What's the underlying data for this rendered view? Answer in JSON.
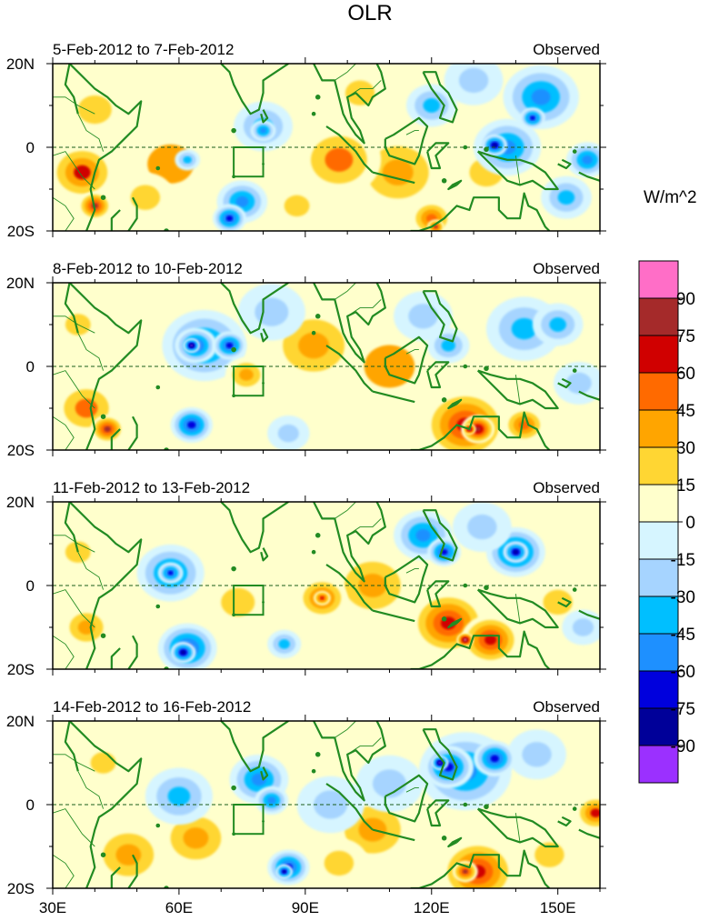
{
  "title": "OLR",
  "colorbar": {
    "units": "W/m^2",
    "levels": [
      "90",
      "75",
      "60",
      "45",
      "30",
      "15",
      "0",
      "-15",
      "-30",
      "-45",
      "-60",
      "-75",
      "-90"
    ],
    "colors": [
      "#ff6ec7",
      "#a52a2a",
      "#d00000",
      "#ff6a00",
      "#ffa500",
      "#ffd633",
      "#ffffcc",
      "#d6f5ff",
      "#a6d4ff",
      "#00bfff",
      "#1e90ff",
      "#0000dd",
      "#000099",
      "#9b30ff"
    ]
  },
  "axes": {
    "lat_labels": [
      "20N",
      "0",
      "20S"
    ],
    "lon_labels": [
      "30E",
      "60E",
      "90E",
      "120E",
      "150E"
    ]
  },
  "land_color": "#228b22",
  "panels": [
    {
      "period": "5-Feb-2012 to 7-Feb-2012",
      "type_label": "Observed",
      "blobs": [
        {
          "lon": 37,
          "lat": -6,
          "r": 8,
          "v": 60
        },
        {
          "lon": 40,
          "lat": -14,
          "r": 4,
          "v": 75
        },
        {
          "lon": 40,
          "lat": 9,
          "r": 8,
          "v": 20
        },
        {
          "lon": 52,
          "lat": -12,
          "r": 7,
          "v": 22
        },
        {
          "lon": 58,
          "lat": -4,
          "r": 11,
          "v": 30
        },
        {
          "lon": 75,
          "lat": -13,
          "r": 6,
          "v": -55
        },
        {
          "lon": 72,
          "lat": -17,
          "r": 4,
          "v": -65
        },
        {
          "lon": 62,
          "lat": -3,
          "r": 3,
          "v": -45
        },
        {
          "lon": 80,
          "lat": 5,
          "r": 7,
          "v": -45
        },
        {
          "lon": 80,
          "lat": 4,
          "r": 3,
          "v": -60
        },
        {
          "lon": 98,
          "lat": -3,
          "r": 10,
          "v": 45
        },
        {
          "lon": 112,
          "lat": -6,
          "r": 11,
          "v": 40
        },
        {
          "lon": 103,
          "lat": 13,
          "r": 7,
          "v": 18
        },
        {
          "lon": 88,
          "lat": -14,
          "r": 6,
          "v": 18
        },
        {
          "lon": 120,
          "lat": -17,
          "r": 5,
          "v": 50
        },
        {
          "lon": 121,
          "lat": -19,
          "r": 2,
          "v": 75
        },
        {
          "lon": 133,
          "lat": -6,
          "r": 8,
          "v": 20
        },
        {
          "lon": 120,
          "lat": 10,
          "r": 6,
          "v": -45
        },
        {
          "lon": 138,
          "lat": 0,
          "r": 8,
          "v": -60
        },
        {
          "lon": 135,
          "lat": 0.5,
          "r": 3,
          "v": -80
        },
        {
          "lon": 146,
          "lat": 12,
          "r": 9,
          "v": -55
        },
        {
          "lon": 144,
          "lat": 7,
          "r": 3,
          "v": -70
        },
        {
          "lon": 152,
          "lat": -12,
          "r": 6,
          "v": -40
        },
        {
          "lon": 157,
          "lat": -3,
          "r": 5,
          "v": -50
        },
        {
          "lon": 130,
          "lat": 16,
          "r": 7,
          "v": -25
        }
      ]
    },
    {
      "period": "8-Feb-2012 to 10-Feb-2012",
      "type_label": "Observed",
      "blobs": [
        {
          "lon": 38,
          "lat": -10,
          "r": 8,
          "v": 45
        },
        {
          "lon": 43,
          "lat": -15,
          "r": 4,
          "v": 75
        },
        {
          "lon": 36,
          "lat": 10,
          "r": 6,
          "v": 20
        },
        {
          "lon": 66,
          "lat": 5,
          "r": 10,
          "v": -55
        },
        {
          "lon": 64,
          "lat": 5,
          "r": 5,
          "v": -75
        },
        {
          "lon": 63,
          "lat": 5,
          "r": 2,
          "v": -92
        },
        {
          "lon": 72,
          "lat": 5,
          "r": 4,
          "v": -70
        },
        {
          "lon": 82,
          "lat": 13,
          "r": 8,
          "v": -25
        },
        {
          "lon": 63,
          "lat": -14,
          "r": 5,
          "v": -70
        },
        {
          "lon": 76,
          "lat": -2,
          "r": 5,
          "v": 40
        },
        {
          "lon": 92,
          "lat": 5,
          "r": 11,
          "v": 40
        },
        {
          "lon": 110,
          "lat": 0,
          "r": 12,
          "v": 30
        },
        {
          "lon": 128,
          "lat": -14,
          "r": 10,
          "v": 70
        },
        {
          "lon": 131,
          "lat": -15,
          "r": 4,
          "v": 80
        },
        {
          "lon": 129,
          "lat": -15,
          "r": 1.5,
          "v": 92
        },
        {
          "lon": 142,
          "lat": -14,
          "r": 5,
          "v": 55
        },
        {
          "lon": 118,
          "lat": 12,
          "r": 7,
          "v": -30
        },
        {
          "lon": 124,
          "lat": 5,
          "r": 5,
          "v": -40
        },
        {
          "lon": 142,
          "lat": 9,
          "r": 9,
          "v": -45
        },
        {
          "lon": 150,
          "lat": 10,
          "r": 6,
          "v": -35
        },
        {
          "lon": 155,
          "lat": -4,
          "r": 6,
          "v": -25
        },
        {
          "lon": 86,
          "lat": -16,
          "r": 5,
          "v": -20
        }
      ]
    },
    {
      "period": "11-Feb-2012 to 13-Feb-2012",
      "type_label": "Observed",
      "blobs": [
        {
          "lon": 58,
          "lat": 3,
          "r": 8,
          "v": -55
        },
        {
          "lon": 58,
          "lat": 3,
          "r": 3,
          "v": -75
        },
        {
          "lon": 62,
          "lat": -15,
          "r": 7,
          "v": -65
        },
        {
          "lon": 61,
          "lat": -16,
          "r": 3,
          "v": -80
        },
        {
          "lon": 38,
          "lat": -10,
          "r": 6,
          "v": 40
        },
        {
          "lon": 36,
          "lat": 8,
          "r": 6,
          "v": 20
        },
        {
          "lon": 74,
          "lat": -4,
          "r": 8,
          "v": 20
        },
        {
          "lon": 94,
          "lat": -3,
          "r": 6,
          "v": 55
        },
        {
          "lon": 94,
          "lat": -3,
          "r": 2,
          "v": 65
        },
        {
          "lon": 106,
          "lat": 0,
          "r": 10,
          "v": 35
        },
        {
          "lon": 85,
          "lat": -14,
          "r": 4,
          "v": -45
        },
        {
          "lon": 124,
          "lat": -9,
          "r": 9,
          "v": 65
        },
        {
          "lon": 134,
          "lat": -13,
          "r": 7,
          "v": 72
        },
        {
          "lon": 128,
          "lat": -13,
          "r": 2,
          "v": 92
        },
        {
          "lon": 118,
          "lat": 12,
          "r": 7,
          "v": -50
        },
        {
          "lon": 123,
          "lat": 8,
          "r": 4,
          "v": -70
        },
        {
          "lon": 140,
          "lat": 8,
          "r": 7,
          "v": -65
        },
        {
          "lon": 140,
          "lat": 8,
          "r": 3,
          "v": -80
        },
        {
          "lon": 132,
          "lat": 14,
          "r": 7,
          "v": -30
        },
        {
          "lon": 150,
          "lat": -4,
          "r": 7,
          "v": 20
        },
        {
          "lon": 156,
          "lat": -10,
          "r": 5,
          "v": -25
        }
      ]
    },
    {
      "period": "14-Feb-2012 to 16-Feb-2012",
      "type_label": "Observed",
      "blobs": [
        {
          "lon": 42,
          "lat": 10,
          "r": 6,
          "v": 25
        },
        {
          "lon": 48,
          "lat": -12,
          "r": 9,
          "v": 38
        },
        {
          "lon": 64,
          "lat": -8,
          "r": 9,
          "v": 40
        },
        {
          "lon": 60,
          "lat": 2,
          "r": 8,
          "v": -35
        },
        {
          "lon": 79,
          "lat": 6,
          "r": 7,
          "v": -50
        },
        {
          "lon": 82,
          "lat": 1,
          "r": 4,
          "v": -55
        },
        {
          "lon": 86,
          "lat": -15,
          "r": 5,
          "v": -65
        },
        {
          "lon": 85,
          "lat": -16,
          "r": 2,
          "v": -80
        },
        {
          "lon": 96,
          "lat": 0,
          "r": 8,
          "v": -25
        },
        {
          "lon": 110,
          "lat": 5,
          "r": 8,
          "v": -20
        },
        {
          "lon": 106,
          "lat": -6,
          "r": 10,
          "v": 35
        },
        {
          "lon": 98,
          "lat": -14,
          "r": 7,
          "v": 25
        },
        {
          "lon": 128,
          "lat": 8,
          "r": 11,
          "v": -60
        },
        {
          "lon": 124,
          "lat": 9,
          "r": 6,
          "v": -75
        },
        {
          "lon": 122,
          "lat": 10,
          "r": 2,
          "v": -92
        },
        {
          "lon": 135,
          "lat": 11,
          "r": 5,
          "v": -65
        },
        {
          "lon": 131,
          "lat": -16,
          "r": 9,
          "v": 65
        },
        {
          "lon": 128,
          "lat": -16,
          "r": 3,
          "v": 75
        },
        {
          "lon": 148,
          "lat": -12,
          "r": 7,
          "v": 25
        },
        {
          "lon": 159,
          "lat": -2,
          "r": 5,
          "v": 60
        },
        {
          "lon": 145,
          "lat": 12,
          "r": 7,
          "v": -30
        }
      ]
    }
  ]
}
